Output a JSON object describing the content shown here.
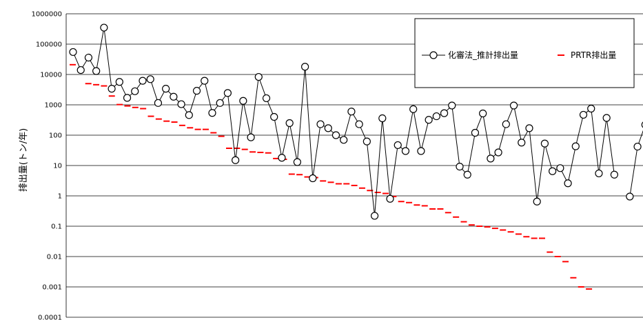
{
  "chart_data": {
    "type": "line",
    "ylabel": "排出量(トン/年)",
    "yscale": "log",
    "ylim": [
      0.0001,
      1000000
    ],
    "yticks": [
      "1000000",
      "100000",
      "10000",
      "1000",
      "100",
      "10",
      "1",
      "0.1",
      "0.01",
      "0.001",
      "0.0001"
    ],
    "grid": true,
    "legend_position": "top-right",
    "series": [
      {
        "name": "化審法_推計排出量",
        "style": "line-circle",
        "color": "#000000",
        "values": [
          55000,
          14000,
          36000,
          13000,
          350000,
          3400,
          5700,
          1700,
          2800,
          6200,
          7000,
          1150,
          3400,
          1850,
          1050,
          460,
          2900,
          6200,
          540,
          1150,
          2450,
          15,
          1350,
          85,
          8300,
          1650,
          400,
          18,
          250,
          13,
          18000,
          3.8,
          230,
          170,
          100,
          70,
          600,
          230,
          62,
          0.22,
          360,
          0.8,
          47,
          30,
          720,
          30,
          320,
          420,
          530,
          950,
          9.2,
          5,
          120,
          520,
          17,
          27,
          230,
          950,
          57,
          170,
          0.65,
          53,
          6.5,
          8.2,
          2.6,
          43,
          470,
          750,
          5.5,
          370,
          5,
          null,
          0.95,
          42,
          220
        ]
      },
      {
        "name": "PRTR排出量",
        "style": "dash",
        "color": "#ff0000",
        "values": [
          21000,
          14000,
          5000,
          4600,
          4200,
          1950,
          1020,
          920,
          820,
          750,
          420,
          340,
          290,
          270,
          210,
          175,
          155,
          155,
          120,
          92,
          37,
          37,
          34,
          28,
          27,
          26,
          17,
          16,
          5.2,
          5,
          4.2,
          4,
          3.1,
          2.8,
          2.5,
          2.5,
          2.2,
          1.8,
          1.5,
          1.3,
          1.2,
          0.95,
          0.65,
          0.6,
          0.5,
          0.47,
          0.37,
          0.37,
          0.28,
          0.2,
          0.14,
          0.11,
          0.1,
          0.095,
          0.085,
          0.075,
          0.065,
          0.055,
          0.045,
          0.04,
          0.04,
          0.014,
          0.01,
          0.0068,
          0.002,
          0.001,
          0.00085
        ]
      }
    ]
  }
}
